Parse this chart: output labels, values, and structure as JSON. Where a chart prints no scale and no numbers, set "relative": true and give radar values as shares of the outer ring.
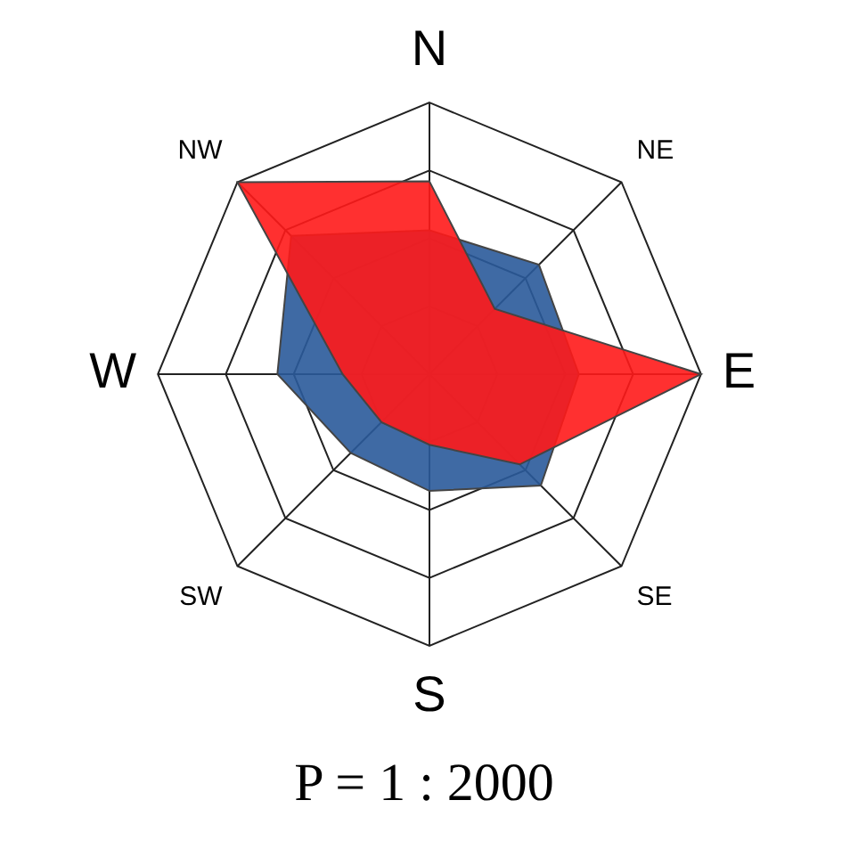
{
  "chart_data": {
    "type": "radar",
    "title": "P = 1 : 2000",
    "relative": true,
    "grid": true,
    "legend": false,
    "marker": "none",
    "categories": [
      "N",
      "NE",
      "E",
      "SE",
      "S",
      "SW",
      "W",
      "NW"
    ],
    "series": [
      {
        "color": "#ff1a1a",
        "values": [
          0.71,
          0.34,
          1,
          0.47,
          0.26,
          0.25,
          0.32,
          1
        ]
      },
      {
        "color": "#2a5a9a",
        "values": [
          0.53,
          0.57,
          0.55,
          0.58,
          0.43,
          0.41,
          0.56,
          0.72
        ]
      }
    ]
  }
}
